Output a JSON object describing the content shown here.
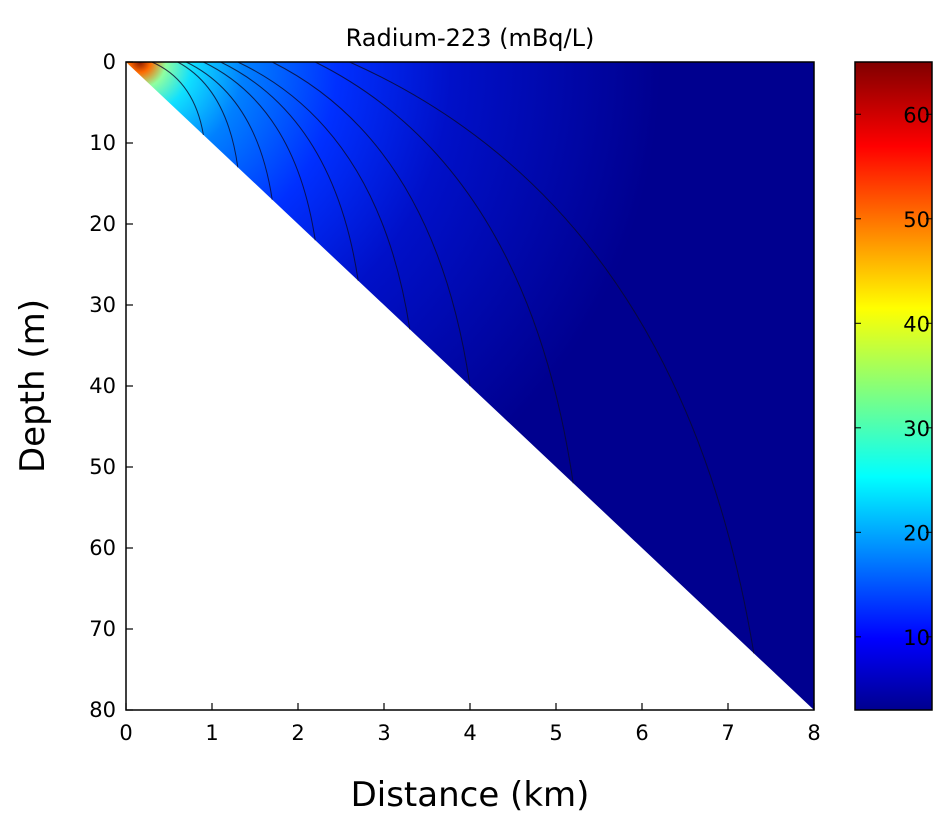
{
  "chart_data": {
    "type": "heatmap",
    "title": "Radium-223 (mBq/L)",
    "xlabel": "Distance (km)",
    "ylabel": "Depth (m)",
    "xlim": [
      0,
      8
    ],
    "ylim": [
      0,
      80
    ],
    "y_inverted": true,
    "x_ticks": [
      "0",
      "1",
      "2",
      "3",
      "4",
      "5",
      "6",
      "7",
      "8"
    ],
    "y_ticks": [
      "0",
      "10",
      "20",
      "30",
      "40",
      "50",
      "60",
      "70",
      "80"
    ],
    "colorbar": {
      "min": 3,
      "max": 65,
      "ticks": [
        "10",
        "20",
        "30",
        "40",
        "50",
        "60"
      ],
      "colormap": "jet"
    },
    "domain_boundary": {
      "description_points": [
        [
          0,
          0
        ],
        [
          8,
          80
        ]
      ]
    },
    "max_value_location": [
      0.2,
      1
    ],
    "contour_lines": [
      {
        "foot": [
          0.9,
          9
        ],
        "top": [
          0.3,
          0
        ]
      },
      {
        "foot": [
          1.3,
          13
        ],
        "top": [
          0.6,
          0
        ]
      },
      {
        "foot": [
          1.7,
          17
        ],
        "top": [
          0.7,
          0
        ]
      },
      {
        "foot": [
          2.2,
          22
        ],
        "top": [
          0.9,
          0
        ]
      },
      {
        "foot": [
          2.7,
          27
        ],
        "top": [
          1.1,
          0
        ]
      },
      {
        "foot": [
          3.3,
          33
        ],
        "top": [
          1.3,
          0
        ]
      },
      {
        "foot": [
          4.0,
          40
        ],
        "top": [
          1.7,
          0
        ]
      },
      {
        "foot": [
          5.2,
          52
        ],
        "top": [
          2.2,
          0
        ]
      },
      {
        "foot": [
          7.3,
          73
        ],
        "top": [
          2.6,
          0
        ]
      }
    ]
  }
}
